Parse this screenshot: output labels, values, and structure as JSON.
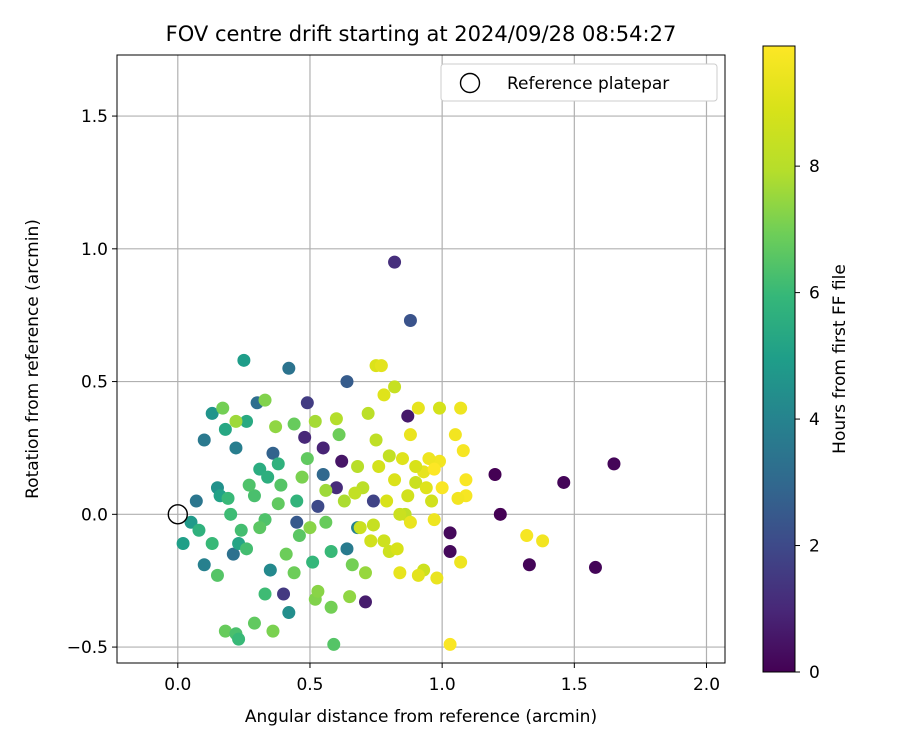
{
  "chart_data": {
    "type": "scatter",
    "title": "FOV centre drift starting at 2024/09/28 08:54:27",
    "xlabel": "Angular distance from reference (arcmin)",
    "ylabel": "Rotation from reference (arcmin)",
    "xlim": [
      -0.23,
      2.07
    ],
    "ylim": [
      -0.56,
      1.73
    ],
    "xticks": [
      0.0,
      0.5,
      1.0,
      1.5,
      2.0
    ],
    "xtick_labels": [
      "0.0",
      "0.5",
      "1.0",
      "1.5",
      "2.0"
    ],
    "yticks": [
      -0.5,
      0.0,
      0.5,
      1.0,
      1.5
    ],
    "ytick_labels": [
      "−0.5",
      "0.0",
      "0.5",
      "1.0",
      "1.5"
    ],
    "grid": true,
    "legend": {
      "placement": "top-right",
      "label": "Reference platepar",
      "marker": "open-circle"
    },
    "reference_point": {
      "x": 0.0,
      "y": 0.0
    },
    "colorbar": {
      "label": "Hours from first FF file",
      "colormap": "viridis",
      "min": 0,
      "max": 9.9,
      "ticks": [
        0,
        2,
        4,
        6,
        8
      ],
      "tick_labels": [
        "0",
        "2",
        "4",
        "6",
        "8"
      ]
    },
    "points": [
      {
        "x": 1.2,
        "y": 0.15,
        "c": 0.0
      },
      {
        "x": 1.22,
        "y": 0.0,
        "c": 0.0
      },
      {
        "x": 1.33,
        "y": -0.19,
        "c": 0.1
      },
      {
        "x": 1.46,
        "y": 0.12,
        "c": 0.1
      },
      {
        "x": 1.58,
        "y": -0.2,
        "c": 0.1
      },
      {
        "x": 1.65,
        "y": 0.19,
        "c": 0.1
      },
      {
        "x": 1.03,
        "y": -0.07,
        "c": 0.2
      },
      {
        "x": 1.03,
        "y": -0.14,
        "c": 0.2
      },
      {
        "x": 0.87,
        "y": 0.37,
        "c": 0.6
      },
      {
        "x": 0.71,
        "y": -0.33,
        "c": 0.7
      },
      {
        "x": 0.62,
        "y": 0.2,
        "c": 0.5
      },
      {
        "x": 0.55,
        "y": 0.25,
        "c": 0.9
      },
      {
        "x": 0.82,
        "y": 0.95,
        "c": 1.2
      },
      {
        "x": 0.88,
        "y": 0.73,
        "c": 2.3
      },
      {
        "x": 0.64,
        "y": 0.5,
        "c": 2.6
      },
      {
        "x": 0.49,
        "y": 0.42,
        "c": 1.6
      },
      {
        "x": 0.42,
        "y": 0.55,
        "c": 3.4
      },
      {
        "x": 0.25,
        "y": 0.58,
        "c": 4.9
      },
      {
        "x": 0.4,
        "y": -0.3,
        "c": 1.5
      },
      {
        "x": 0.48,
        "y": 0.29,
        "c": 1.0
      },
      {
        "x": 0.6,
        "y": 0.1,
        "c": 1.1
      },
      {
        "x": 0.74,
        "y": 0.05,
        "c": 1.8
      },
      {
        "x": 0.53,
        "y": 0.03,
        "c": 2.0
      },
      {
        "x": 0.45,
        "y": -0.03,
        "c": 2.5
      },
      {
        "x": 0.36,
        "y": 0.23,
        "c": 2.8
      },
      {
        "x": 0.3,
        "y": 0.42,
        "c": 3.2
      },
      {
        "x": 0.1,
        "y": 0.28,
        "c": 3.6
      },
      {
        "x": 0.07,
        "y": 0.05,
        "c": 3.5
      },
      {
        "x": 0.1,
        "y": -0.19,
        "c": 3.9
      },
      {
        "x": 0.22,
        "y": 0.25,
        "c": 3.8
      },
      {
        "x": 0.21,
        "y": -0.15,
        "c": 3.3
      },
      {
        "x": 0.35,
        "y": -0.21,
        "c": 4.2
      },
      {
        "x": 0.42,
        "y": -0.37,
        "c": 4.4
      },
      {
        "x": 0.55,
        "y": 0.15,
        "c": 3.0
      },
      {
        "x": 0.64,
        "y": -0.13,
        "c": 3.7
      },
      {
        "x": 0.68,
        "y": -0.05,
        "c": 4.0
      },
      {
        "x": 0.15,
        "y": 0.1,
        "c": 4.5
      },
      {
        "x": 0.13,
        "y": 0.38,
        "c": 4.6
      },
      {
        "x": 0.05,
        "y": -0.03,
        "c": 4.8
      },
      {
        "x": 0.02,
        "y": -0.11,
        "c": 5.0
      },
      {
        "x": 0.16,
        "y": 0.07,
        "c": 5.1
      },
      {
        "x": 0.23,
        "y": -0.11,
        "c": 5.2
      },
      {
        "x": 0.18,
        "y": 0.32,
        "c": 5.3
      },
      {
        "x": 0.26,
        "y": 0.35,
        "c": 5.4
      },
      {
        "x": 0.31,
        "y": 0.17,
        "c": 5.5
      },
      {
        "x": 0.34,
        "y": 0.14,
        "c": 5.6
      },
      {
        "x": 0.38,
        "y": 0.19,
        "c": 5.7
      },
      {
        "x": 0.45,
        "y": 0.05,
        "c": 5.8
      },
      {
        "x": 0.51,
        "y": -0.18,
        "c": 5.9
      },
      {
        "x": 0.58,
        "y": -0.14,
        "c": 6.0
      },
      {
        "x": 0.2,
        "y": 0.0,
        "c": 6.1
      },
      {
        "x": 0.13,
        "y": -0.11,
        "c": 6.0
      },
      {
        "x": 0.08,
        "y": -0.06,
        "c": 5.7
      },
      {
        "x": 0.26,
        "y": -0.13,
        "c": 6.2
      },
      {
        "x": 0.29,
        "y": 0.07,
        "c": 6.3
      },
      {
        "x": 0.33,
        "y": -0.02,
        "c": 6.4
      },
      {
        "x": 0.39,
        "y": 0.11,
        "c": 6.5
      },
      {
        "x": 0.46,
        "y": -0.08,
        "c": 6.6
      },
      {
        "x": 0.49,
        "y": 0.21,
        "c": 6.7
      },
      {
        "x": 0.56,
        "y": -0.03,
        "c": 6.8
      },
      {
        "x": 0.61,
        "y": 0.3,
        "c": 6.9
      },
      {
        "x": 0.66,
        "y": -0.19,
        "c": 7.0
      },
      {
        "x": 0.15,
        "y": -0.23,
        "c": 6.5
      },
      {
        "x": 0.18,
        "y": -0.44,
        "c": 6.8
      },
      {
        "x": 0.22,
        "y": -0.45,
        "c": 6.3
      },
      {
        "x": 0.23,
        "y": -0.47,
        "c": 6.0
      },
      {
        "x": 0.29,
        "y": -0.41,
        "c": 6.7
      },
      {
        "x": 0.33,
        "y": -0.3,
        "c": 6.1
      },
      {
        "x": 0.36,
        "y": -0.44,
        "c": 7.1
      },
      {
        "x": 0.44,
        "y": -0.22,
        "c": 6.9
      },
      {
        "x": 0.52,
        "y": -0.32,
        "c": 7.2
      },
      {
        "x": 0.59,
        "y": -0.49,
        "c": 6.5
      },
      {
        "x": 0.53,
        "y": -0.29,
        "c": 7.3
      },
      {
        "x": 0.58,
        "y": -0.35,
        "c": 7.0
      },
      {
        "x": 0.65,
        "y": -0.31,
        "c": 7.4
      },
      {
        "x": 0.71,
        "y": -0.22,
        "c": 7.5
      },
      {
        "x": 0.17,
        "y": 0.4,
        "c": 7.0
      },
      {
        "x": 0.22,
        "y": 0.35,
        "c": 7.6
      },
      {
        "x": 0.33,
        "y": 0.43,
        "c": 7.2
      },
      {
        "x": 0.37,
        "y": 0.33,
        "c": 7.4
      },
      {
        "x": 0.44,
        "y": 0.34,
        "c": 6.8
      },
      {
        "x": 0.52,
        "y": 0.35,
        "c": 7.7
      },
      {
        "x": 0.6,
        "y": 0.36,
        "c": 7.9
      },
      {
        "x": 0.68,
        "y": 0.18,
        "c": 8.0
      },
      {
        "x": 0.72,
        "y": 0.38,
        "c": 8.1
      },
      {
        "x": 0.75,
        "y": 0.28,
        "c": 8.2
      },
      {
        "x": 0.8,
        "y": 0.22,
        "c": 8.3
      },
      {
        "x": 0.82,
        "y": 0.48,
        "c": 8.4
      },
      {
        "x": 0.86,
        "y": 0.0,
        "c": 8.2
      },
      {
        "x": 0.9,
        "y": 0.12,
        "c": 8.5
      },
      {
        "x": 0.93,
        "y": -0.21,
        "c": 8.6
      },
      {
        "x": 0.96,
        "y": 0.05,
        "c": 8.7
      },
      {
        "x": 0.99,
        "y": 0.4,
        "c": 8.8
      },
      {
        "x": 0.78,
        "y": -0.1,
        "c": 8.6
      },
      {
        "x": 0.74,
        "y": -0.04,
        "c": 8.4
      },
      {
        "x": 0.7,
        "y": 0.1,
        "c": 8.1
      },
      {
        "x": 0.63,
        "y": 0.05,
        "c": 7.8
      },
      {
        "x": 0.56,
        "y": 0.09,
        "c": 7.6
      },
      {
        "x": 0.5,
        "y": -0.05,
        "c": 7.3
      },
      {
        "x": 0.47,
        "y": 0.14,
        "c": 7.1
      },
      {
        "x": 0.41,
        "y": -0.15,
        "c": 6.9
      },
      {
        "x": 0.38,
        "y": 0.04,
        "c": 6.7
      },
      {
        "x": 0.31,
        "y": -0.05,
        "c": 6.6
      },
      {
        "x": 0.27,
        "y": 0.11,
        "c": 6.4
      },
      {
        "x": 0.24,
        "y": -0.06,
        "c": 6.2
      },
      {
        "x": 0.19,
        "y": 0.06,
        "c": 6.0
      },
      {
        "x": 0.75,
        "y": 0.56,
        "c": 9.0
      },
      {
        "x": 0.77,
        "y": 0.56,
        "c": 9.2
      },
      {
        "x": 0.78,
        "y": 0.45,
        "c": 9.1
      },
      {
        "x": 0.91,
        "y": 0.4,
        "c": 9.3
      },
      {
        "x": 0.88,
        "y": 0.3,
        "c": 9.4
      },
      {
        "x": 1.07,
        "y": 0.4,
        "c": 9.5
      },
      {
        "x": 1.05,
        "y": 0.3,
        "c": 9.6
      },
      {
        "x": 1.08,
        "y": 0.24,
        "c": 9.7
      },
      {
        "x": 1.09,
        "y": 0.13,
        "c": 9.8
      },
      {
        "x": 1.09,
        "y": 0.07,
        "c": 9.7
      },
      {
        "x": 1.06,
        "y": 0.06,
        "c": 9.6
      },
      {
        "x": 1.07,
        "y": -0.18,
        "c": 9.5
      },
      {
        "x": 0.98,
        "y": -0.24,
        "c": 9.4
      },
      {
        "x": 1.03,
        "y": -0.49,
        "c": 9.8
      },
      {
        "x": 1.32,
        "y": -0.08,
        "c": 9.7
      },
      {
        "x": 1.38,
        "y": -0.1,
        "c": 9.6
      },
      {
        "x": 0.84,
        "y": -0.22,
        "c": 9.3
      },
      {
        "x": 0.91,
        "y": -0.23,
        "c": 9.2
      },
      {
        "x": 0.88,
        "y": -0.03,
        "c": 9.4
      },
      {
        "x": 0.97,
        "y": -0.02,
        "c": 9.5
      },
      {
        "x": 0.99,
        "y": 0.2,
        "c": 9.6
      },
      {
        "x": 0.95,
        "y": 0.21,
        "c": 9.5
      },
      {
        "x": 0.93,
        "y": 0.16,
        "c": 9.3
      },
      {
        "x": 0.85,
        "y": 0.21,
        "c": 9.1
      },
      {
        "x": 0.82,
        "y": 0.13,
        "c": 9.0
      },
      {
        "x": 0.79,
        "y": 0.05,
        "c": 8.9
      },
      {
        "x": 0.76,
        "y": 0.18,
        "c": 8.8
      },
      {
        "x": 0.73,
        "y": -0.1,
        "c": 8.7
      },
      {
        "x": 0.8,
        "y": -0.14,
        "c": 8.6
      },
      {
        "x": 0.83,
        "y": -0.13,
        "c": 8.9
      },
      {
        "x": 0.69,
        "y": -0.05,
        "c": 8.5
      },
      {
        "x": 0.67,
        "y": 0.08,
        "c": 8.3
      },
      {
        "x": 0.97,
        "y": 0.17,
        "c": 9.9
      },
      {
        "x": 1.0,
        "y": 0.1,
        "c": 9.8
      },
      {
        "x": 0.94,
        "y": 0.1,
        "c": 9.1
      },
      {
        "x": 0.9,
        "y": 0.18,
        "c": 8.9
      },
      {
        "x": 0.87,
        "y": 0.07,
        "c": 8.7
      },
      {
        "x": 0.84,
        "y": 0.0,
        "c": 8.5
      }
    ]
  }
}
